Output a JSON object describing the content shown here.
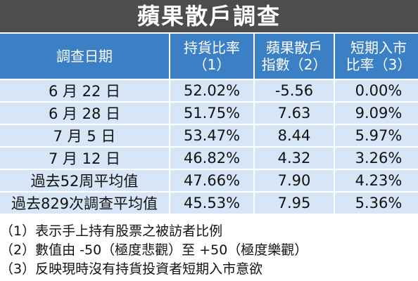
{
  "title": "蘋果散戶調查",
  "table": {
    "header": [
      [
        "調查日期"
      ],
      [
        "持貨比率",
        "（1）"
      ],
      [
        "蘋果散戶",
        "指數（2）"
      ],
      [
        "短期入市",
        "比率（3）"
      ]
    ],
    "rows": [
      [
        "6 月 22 日",
        "52.02%",
        "-5.56",
        "0.00%"
      ],
      [
        "6 月 28 日",
        "51.75%",
        "7.63",
        "9.09%"
      ],
      [
        "7 月 5 日",
        "53.47%",
        "8.44",
        "5.97%"
      ],
      [
        "7 月 12 日",
        "46.82%",
        "4.32",
        "3.26%"
      ],
      [
        "過去52周平均值",
        "47.66%",
        "7.90",
        "4.23%"
      ],
      [
        "過去829次調查平均值",
        "45.53%",
        "7.95",
        "5.36%"
      ]
    ]
  },
  "notes": [
    "（1）表示手上持有股票之被訪者比例",
    "（2）數值由 -50（極度悲觀）至 +50（極度樂觀）",
    "（3）反映現時沒有持貨投資者短期入市意欲"
  ]
}
